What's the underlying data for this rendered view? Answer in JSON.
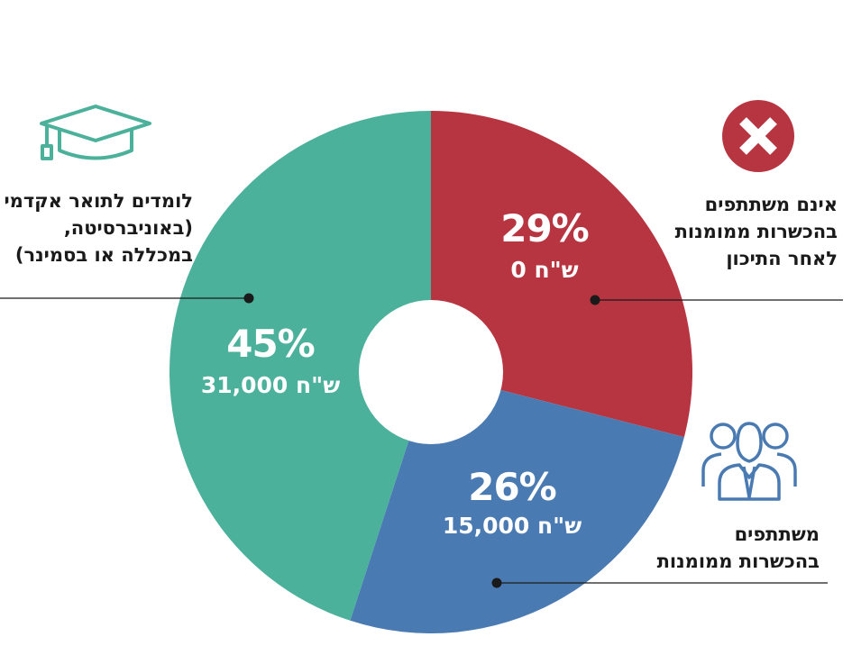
{
  "chart_data": {
    "type": "pie",
    "donut": true,
    "categories": [
      "אינם משתתפים בהכשרות ממומנות לאחר התיכון",
      "משתתפים בהכשרות ממומנות",
      "לומדים לתואר אקדמי (באוניברסיטה, במכללה או בסמינר)"
    ],
    "values": [
      29,
      26,
      45
    ],
    "slice_labels": [
      "29%",
      "26%",
      "45%"
    ],
    "value_labels": [
      "0 ש\"ח",
      "15,000 ש\"ח",
      "31,000 ש\"ח"
    ],
    "colors": [
      "#b73540",
      "#4a7ab2",
      "#4bb19b"
    ],
    "start_angle_deg": 0,
    "direction": "clockwise"
  },
  "callouts": {
    "not_participating": [
      "אינם משתתפים",
      "בהכשרות ממומנות",
      "לאחר התיכון"
    ],
    "participating": [
      "משתתפים",
      "בהכשרות ממומנות"
    ],
    "academic": [
      "לומדים לתואר אקדמי",
      "(באוניברסיטה,",
      "במכללה או בסמינר)"
    ]
  },
  "icons": {
    "not_participating": "x-circle-icon",
    "participating": "group-of-people-icon",
    "academic": "graduation-cap-icon"
  },
  "icon_colors": {
    "not_participating": "#b73540",
    "participating": "#4a7ab2",
    "academic": "#4bb19b"
  }
}
